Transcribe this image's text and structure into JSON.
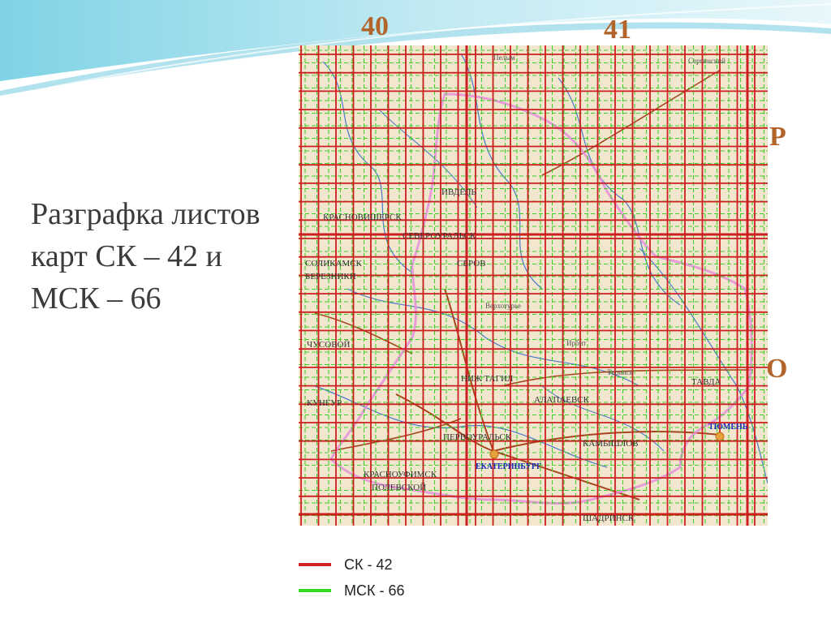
{
  "slide": {
    "title": "Разграфка листов карт СК – 42 и МСК – 66"
  },
  "zones": {
    "top_left": "40",
    "top_right": "41",
    "row_upper": "Р",
    "row_lower": "О"
  },
  "map": {
    "cities": [
      {
        "name": "ЕКАТЕРИНБУРГ",
        "color": "#1a2bb8"
      },
      {
        "name": "ТЮМЕНЬ",
        "color": "#1a2bb8"
      }
    ],
    "place_labels": [
      "ИВДЕЛЬ",
      "СЕВЕРОУРАЛЬСК",
      "СЕРОВ",
      "НИЖ ТАГИЛ",
      "АЛАПАЕВСК",
      "ПЕРВОУРАЛЬСК",
      "КАМЫШЛОВ",
      "КРАСНОУФИМСК",
      "ПОЛЕВСКОЙ",
      "ТАВДА",
      "ЧУСОВОЙ",
      "КУНГУР",
      "БЕРЕЗНИКИ",
      "СОЛИКАМСК",
      "КРАСНОВИШЕРСК",
      "ШАДРИНСК",
      "Пелым",
      "Сергинский",
      "Верхотурье",
      "Ирбит",
      "Туринск"
    ],
    "colors": {
      "background": "#f3e6cf",
      "sk42_lines": "#cc1f1f",
      "msk66_lines": "#3dcf2a",
      "boundary": "#e48fd8",
      "rivers": "#4a79c8",
      "roads": "#a5461f"
    }
  },
  "legend": [
    {
      "label": "СК - 42",
      "color": "#cc2222"
    },
    {
      "label": "МСК - 66",
      "color": "#33dd22"
    }
  ]
}
